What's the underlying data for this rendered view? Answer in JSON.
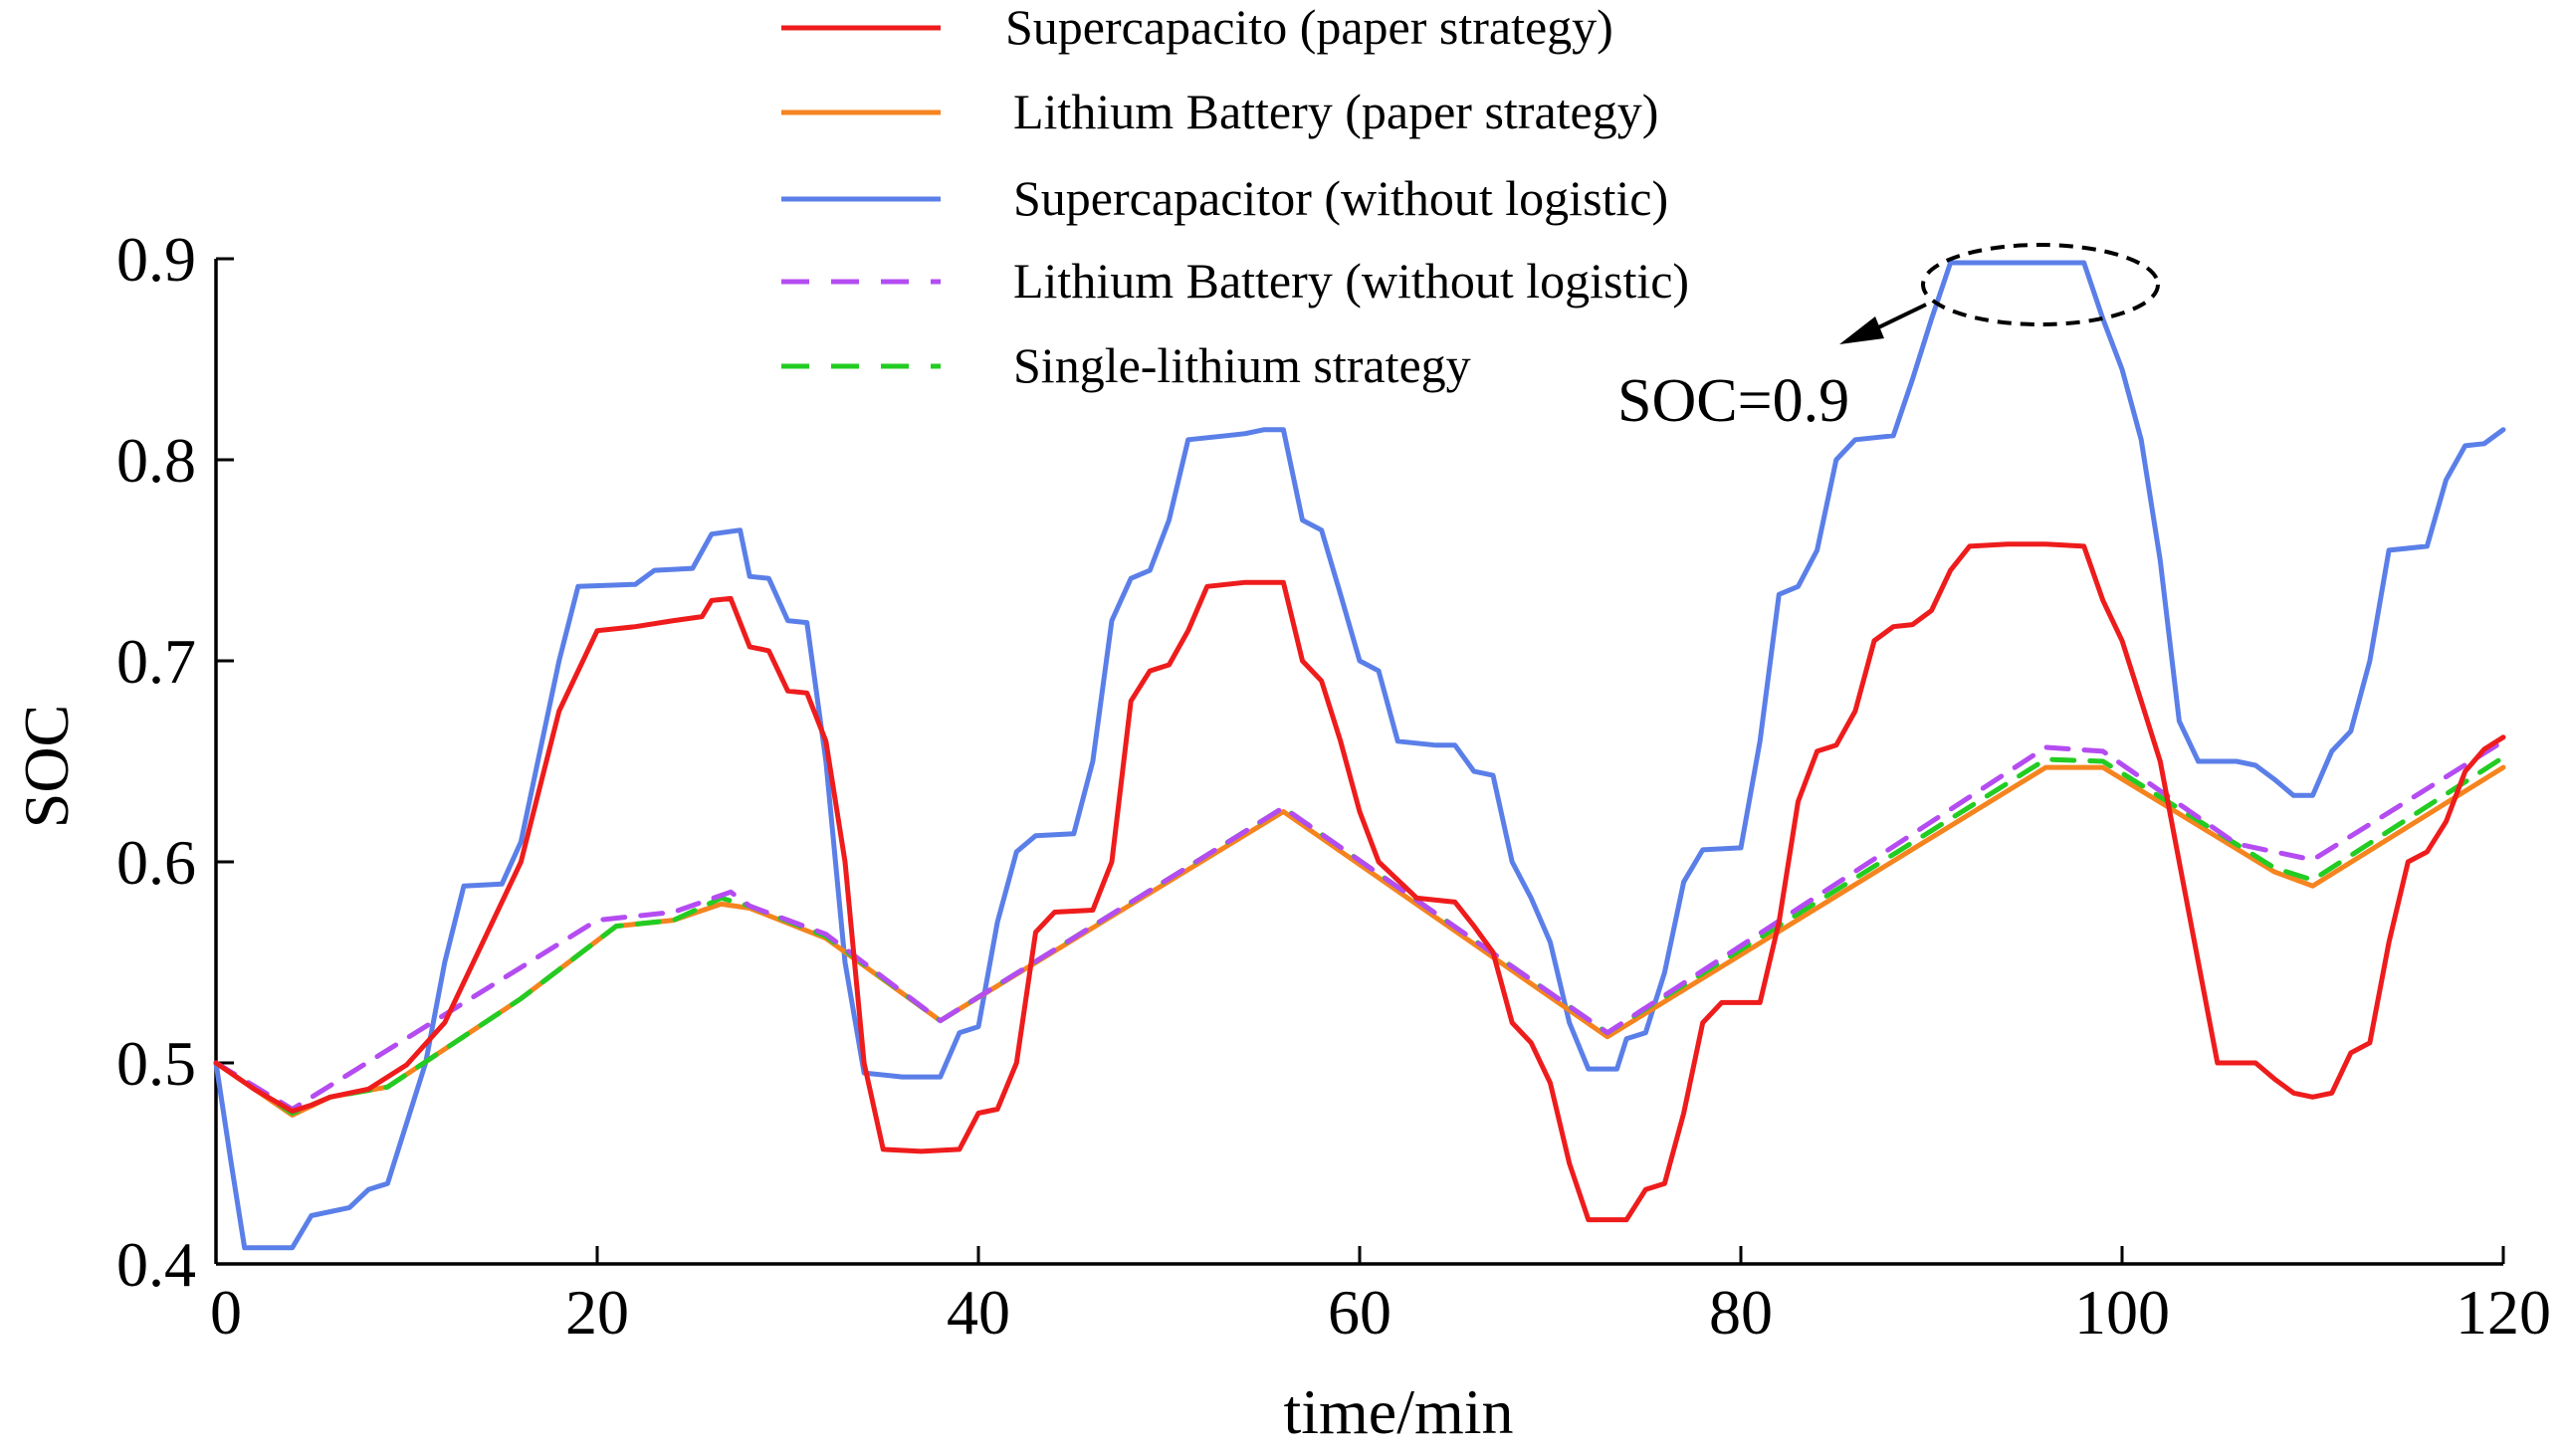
{
  "chart_data": {
    "type": "line",
    "title": "",
    "xlabel": "time/min",
    "ylabel": "SOC",
    "xlim": [
      0,
      120
    ],
    "ylim": [
      0.4,
      0.9
    ],
    "xticks": [
      0,
      20,
      40,
      60,
      80,
      100,
      120
    ],
    "xtick_labels": [
      "0",
      "20",
      "40",
      "60",
      "80",
      "100",
      "120"
    ],
    "yticks": [
      0.4,
      0.5,
      0.6,
      0.7,
      0.8,
      0.9
    ],
    "ytick_labels": [
      "0.4",
      "0.5",
      "0.6",
      "0.7",
      "0.8",
      "0.9"
    ],
    "grid": false,
    "legend_position": "top-center",
    "series": [
      {
        "name": "Supercapacito (paper strategy)",
        "color": "#ee1c1c",
        "dash": "solid",
        "points": [
          [
            0,
            0.5
          ],
          [
            2,
            0.487
          ],
          [
            4,
            0.476
          ],
          [
            5,
            0.479
          ],
          [
            6,
            0.483
          ],
          [
            8,
            0.487
          ],
          [
            10,
            0.499
          ],
          [
            12,
            0.52
          ],
          [
            14,
            0.56
          ],
          [
            16,
            0.6
          ],
          [
            18,
            0.675
          ],
          [
            20,
            0.715
          ],
          [
            22,
            0.717
          ],
          [
            24,
            0.72
          ],
          [
            25.5,
            0.722
          ],
          [
            26,
            0.73
          ],
          [
            27,
            0.731
          ],
          [
            28,
            0.707
          ],
          [
            29,
            0.705
          ],
          [
            30,
            0.685
          ],
          [
            31,
            0.684
          ],
          [
            32,
            0.66
          ],
          [
            33,
            0.6
          ],
          [
            34,
            0.5
          ],
          [
            35,
            0.457
          ],
          [
            37,
            0.456
          ],
          [
            39,
            0.457
          ],
          [
            40,
            0.475
          ],
          [
            41,
            0.477
          ],
          [
            42,
            0.5
          ],
          [
            43,
            0.565
          ],
          [
            44,
            0.575
          ],
          [
            46,
            0.576
          ],
          [
            47,
            0.6
          ],
          [
            48,
            0.68
          ],
          [
            49,
            0.695
          ],
          [
            50,
            0.698
          ],
          [
            51,
            0.715
          ],
          [
            52,
            0.737
          ],
          [
            54,
            0.739
          ],
          [
            56,
            0.739
          ],
          [
            57,
            0.7
          ],
          [
            58,
            0.69
          ],
          [
            59,
            0.66
          ],
          [
            60,
            0.625
          ],
          [
            61,
            0.6
          ],
          [
            63,
            0.582
          ],
          [
            64,
            0.581
          ],
          [
            65,
            0.58
          ],
          [
            66,
            0.568
          ],
          [
            67,
            0.555
          ],
          [
            68,
            0.52
          ],
          [
            69,
            0.51
          ],
          [
            70,
            0.49
          ],
          [
            71,
            0.45
          ],
          [
            72,
            0.422
          ],
          [
            74,
            0.422
          ],
          [
            75,
            0.437
          ],
          [
            76,
            0.44
          ],
          [
            77,
            0.475
          ],
          [
            78,
            0.52
          ],
          [
            79,
            0.53
          ],
          [
            81,
            0.53
          ],
          [
            82,
            0.57
          ],
          [
            83,
            0.63
          ],
          [
            84,
            0.655
          ],
          [
            85,
            0.658
          ],
          [
            86,
            0.675
          ],
          [
            87,
            0.71
          ],
          [
            88,
            0.717
          ],
          [
            89,
            0.718
          ],
          [
            90,
            0.725
          ],
          [
            91,
            0.745
          ],
          [
            92,
            0.757
          ],
          [
            94,
            0.758
          ],
          [
            96,
            0.758
          ],
          [
            98,
            0.757
          ],
          [
            99,
            0.73
          ],
          [
            100,
            0.71
          ],
          [
            101,
            0.68
          ],
          [
            102,
            0.65
          ],
          [
            103,
            0.6
          ],
          [
            104,
            0.55
          ],
          [
            105,
            0.5
          ],
          [
            107,
            0.5
          ],
          [
            108,
            0.492
          ],
          [
            109,
            0.485
          ],
          [
            110,
            0.483
          ],
          [
            111,
            0.485
          ],
          [
            112,
            0.505
          ],
          [
            113,
            0.51
          ],
          [
            114,
            0.56
          ],
          [
            115,
            0.6
          ],
          [
            116,
            0.605
          ],
          [
            117,
            0.62
          ],
          [
            118,
            0.645
          ],
          [
            119,
            0.656
          ],
          [
            120,
            0.662
          ]
        ]
      },
      {
        "name": "Lithium Battery (paper strategy)",
        "color": "#f5841f",
        "dash": "solid",
        "points": [
          [
            0,
            0.5
          ],
          [
            4,
            0.474
          ],
          [
            6,
            0.483
          ],
          [
            9,
            0.488
          ],
          [
            16,
            0.532
          ],
          [
            21,
            0.568
          ],
          [
            24,
            0.571
          ],
          [
            26.5,
            0.579
          ],
          [
            28,
            0.577
          ],
          [
            32,
            0.562
          ],
          [
            38,
            0.521
          ],
          [
            56,
            0.625
          ],
          [
            73,
            0.513
          ],
          [
            96,
            0.647
          ],
          [
            99,
            0.647
          ],
          [
            108,
            0.595
          ],
          [
            110,
            0.588
          ],
          [
            120,
            0.647
          ]
        ]
      },
      {
        "name": "Supercapacitor (without logistic)",
        "color": "#5b7fe8",
        "dash": "solid",
        "points": [
          [
            0,
            0.5
          ],
          [
            0.8,
            0.45
          ],
          [
            1.5,
            0.408
          ],
          [
            4,
            0.408
          ],
          [
            5,
            0.424
          ],
          [
            7,
            0.428
          ],
          [
            8,
            0.437
          ],
          [
            9,
            0.44
          ],
          [
            10,
            0.47
          ],
          [
            11,
            0.5
          ],
          [
            12,
            0.55
          ],
          [
            13,
            0.588
          ],
          [
            15,
            0.589
          ],
          [
            16,
            0.61
          ],
          [
            17,
            0.655
          ],
          [
            18,
            0.7
          ],
          [
            19,
            0.737
          ],
          [
            22,
            0.738
          ],
          [
            23,
            0.745
          ],
          [
            25,
            0.746
          ],
          [
            26,
            0.763
          ],
          [
            27.5,
            0.765
          ],
          [
            28,
            0.742
          ],
          [
            29,
            0.741
          ],
          [
            30,
            0.72
          ],
          [
            31,
            0.719
          ],
          [
            32,
            0.65
          ],
          [
            33,
            0.55
          ],
          [
            34,
            0.495
          ],
          [
            36,
            0.493
          ],
          [
            38,
            0.493
          ],
          [
            39,
            0.515
          ],
          [
            40,
            0.518
          ],
          [
            41,
            0.57
          ],
          [
            42,
            0.605
          ],
          [
            43,
            0.613
          ],
          [
            45,
            0.614
          ],
          [
            46,
            0.65
          ],
          [
            47,
            0.72
          ],
          [
            48,
            0.741
          ],
          [
            49,
            0.745
          ],
          [
            50,
            0.77
          ],
          [
            51,
            0.81
          ],
          [
            53,
            0.812
          ],
          [
            54,
            0.813
          ],
          [
            55,
            0.815
          ],
          [
            56,
            0.815
          ],
          [
            57,
            0.77
          ],
          [
            58,
            0.765
          ],
          [
            59,
            0.733
          ],
          [
            60,
            0.7
          ],
          [
            61,
            0.695
          ],
          [
            62,
            0.66
          ],
          [
            64,
            0.658
          ],
          [
            65,
            0.658
          ],
          [
            66,
            0.645
          ],
          [
            67,
            0.643
          ],
          [
            68,
            0.6
          ],
          [
            69,
            0.582
          ],
          [
            70,
            0.56
          ],
          [
            71,
            0.52
          ],
          [
            72,
            0.497
          ],
          [
            73.5,
            0.497
          ],
          [
            74,
            0.512
          ],
          [
            75,
            0.515
          ],
          [
            76,
            0.545
          ],
          [
            77,
            0.59
          ],
          [
            78,
            0.606
          ],
          [
            80,
            0.607
          ],
          [
            81,
            0.66
          ],
          [
            82,
            0.733
          ],
          [
            83,
            0.737
          ],
          [
            84,
            0.755
          ],
          [
            85,
            0.8
          ],
          [
            86,
            0.81
          ],
          [
            88,
            0.812
          ],
          [
            89,
            0.84
          ],
          [
            90,
            0.87
          ],
          [
            91,
            0.898
          ],
          [
            94,
            0.898
          ],
          [
            97,
            0.898
          ],
          [
            98,
            0.898
          ],
          [
            99,
            0.87
          ],
          [
            100,
            0.845
          ],
          [
            101,
            0.81
          ],
          [
            102,
            0.75
          ],
          [
            103,
            0.67
          ],
          [
            104,
            0.65
          ],
          [
            106,
            0.65
          ],
          [
            107,
            0.648
          ],
          [
            108,
            0.641
          ],
          [
            109,
            0.633
          ],
          [
            110,
            0.633
          ],
          [
            111,
            0.655
          ],
          [
            112,
            0.665
          ],
          [
            113,
            0.7
          ],
          [
            114,
            0.755
          ],
          [
            116,
            0.757
          ],
          [
            117,
            0.79
          ],
          [
            118,
            0.807
          ],
          [
            119,
            0.808
          ],
          [
            120,
            0.815
          ]
        ]
      },
      {
        "name": "Lithium Battery (without logistic)",
        "color": "#b44cf2",
        "dash": "dashed",
        "points": [
          [
            0,
            0.5
          ],
          [
            4,
            0.477
          ],
          [
            20,
            0.571
          ],
          [
            24,
            0.575
          ],
          [
            27,
            0.585
          ],
          [
            28,
            0.578
          ],
          [
            32,
            0.564
          ],
          [
            38,
            0.521
          ],
          [
            56,
            0.627
          ],
          [
            73,
            0.515
          ],
          [
            96,
            0.657
          ],
          [
            99,
            0.655
          ],
          [
            106,
            0.609
          ],
          [
            110,
            0.601
          ],
          [
            120,
            0.66
          ]
        ]
      },
      {
        "name": "Single-lithium strategy",
        "color": "#22cc22",
        "dash": "dashed",
        "points": [
          [
            0,
            0.5
          ],
          [
            4,
            0.475
          ],
          [
            6,
            0.483
          ],
          [
            9,
            0.488
          ],
          [
            16,
            0.532
          ],
          [
            21,
            0.568
          ],
          [
            24,
            0.571
          ],
          [
            26.5,
            0.582
          ],
          [
            28,
            0.578
          ],
          [
            32,
            0.563
          ],
          [
            38,
            0.521
          ],
          [
            56,
            0.627
          ],
          [
            73,
            0.515
          ],
          [
            96,
            0.651
          ],
          [
            99,
            0.65
          ],
          [
            108,
            0.597
          ],
          [
            110,
            0.591
          ],
          [
            120,
            0.652
          ]
        ]
      }
    ],
    "annotations": [
      {
        "text": "SOC=0.9",
        "target_x": 95,
        "target_y": 0.89
      }
    ]
  }
}
